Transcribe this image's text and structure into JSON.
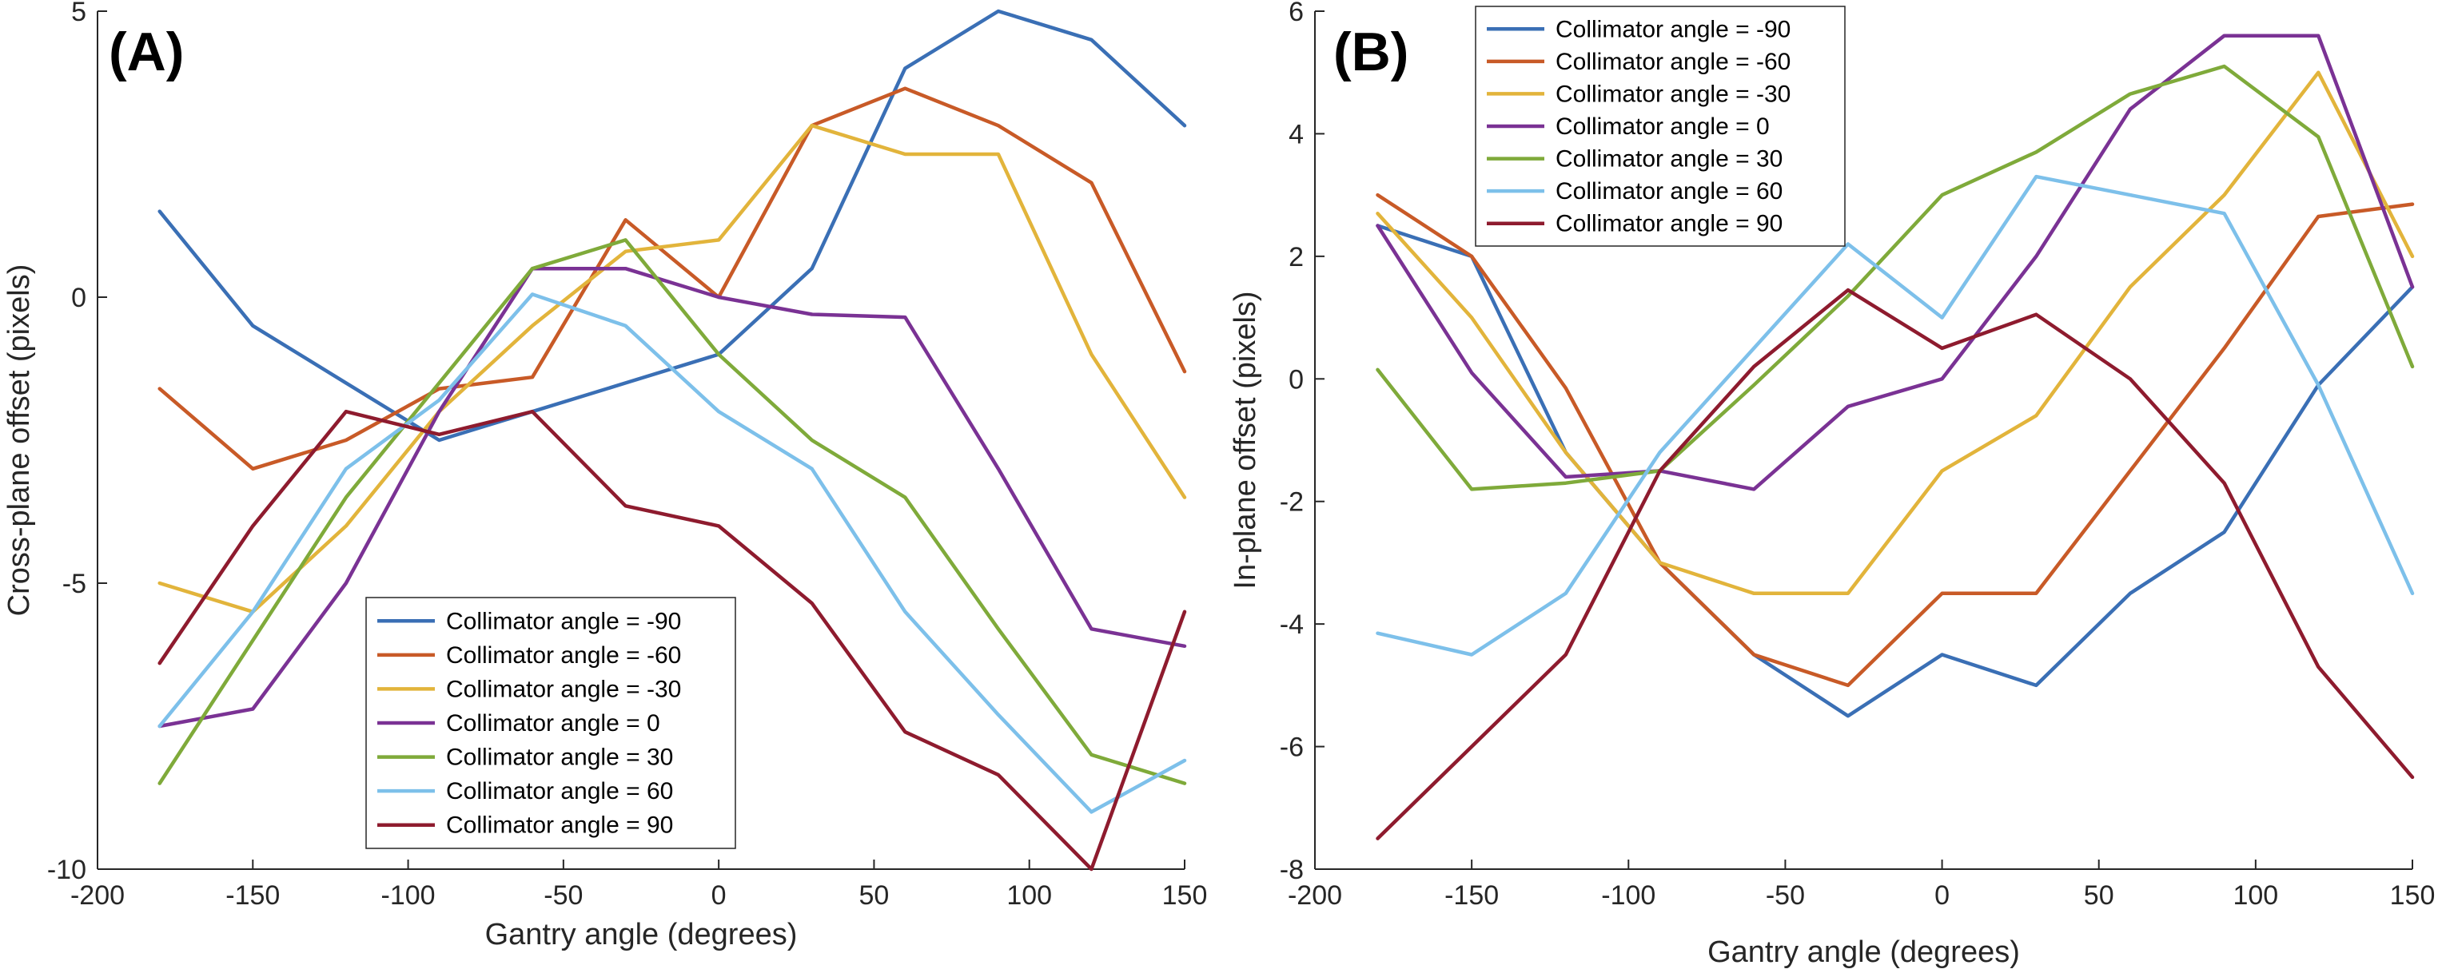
{
  "chart_data": [
    {
      "type": "line",
      "panel_label": "(A)",
      "xlabel": "Gantry angle (degrees)",
      "ylabel": "Cross-plane offset (pixels)",
      "xlim": [
        -200,
        150
      ],
      "ylim": [
        -10,
        5
      ],
      "xticks": [
        -200,
        -150,
        -100,
        -50,
        0,
        50,
        100,
        150
      ],
      "yticks": [
        -10,
        -5,
        0,
        5
      ],
      "legend_position": "bottom-center",
      "x": [
        -180,
        -150,
        -120,
        -90,
        -60,
        -30,
        0,
        30,
        60,
        90,
        120,
        150
      ],
      "series": [
        {
          "name": "Collimator angle = -90",
          "color": "#3A6FB5",
          "values": [
            1.5,
            -0.5,
            -1.5,
            -2.5,
            -2.0,
            -1.5,
            -1.0,
            0.5,
            4.0,
            5.0,
            4.5,
            3.0
          ]
        },
        {
          "name": "Collimator angle = -60",
          "color": "#C85A27",
          "values": [
            -1.6,
            -3.0,
            -2.5,
            -1.6,
            -1.4,
            1.35,
            0.0,
            3.0,
            3.65,
            3.0,
            2.0,
            -1.3
          ]
        },
        {
          "name": "Collimator angle = -30",
          "color": "#E2B43B",
          "values": [
            -5.0,
            -5.5,
            -4.0,
            -2.0,
            -0.5,
            0.8,
            1.0,
            3.0,
            2.5,
            2.5,
            -1.0,
            -3.5
          ]
        },
        {
          "name": "Collimator angle = 0",
          "color": "#7A3294",
          "values": [
            -7.5,
            -7.2,
            -5.0,
            -2.0,
            0.5,
            0.5,
            0.0,
            -0.3,
            -0.35,
            -3.0,
            -5.8,
            -6.1
          ]
        },
        {
          "name": "Collimator angle = 30",
          "color": "#7FAA3A",
          "values": [
            -8.5,
            -6.0,
            -3.5,
            -1.5,
            0.5,
            1.0,
            -1.0,
            -2.5,
            -3.5,
            -5.8,
            -8.0,
            -8.5
          ]
        },
        {
          "name": "Collimator angle = 60",
          "color": "#7DC0EA",
          "values": [
            -7.5,
            -5.5,
            -3.0,
            -1.8,
            0.05,
            -0.5,
            -2.0,
            -3.0,
            -5.5,
            -7.3,
            -9.0,
            -8.1
          ]
        },
        {
          "name": "Collimator angle = 90",
          "color": "#8E1B2E",
          "values": [
            -6.4,
            -4.0,
            -2.0,
            -2.4,
            -2.0,
            -3.65,
            -4.0,
            -5.35,
            -7.6,
            -8.35,
            -10.0,
            -5.5
          ]
        }
      ]
    },
    {
      "type": "line",
      "panel_label": "(B)",
      "xlabel": "Gantry angle (degrees)",
      "ylabel": "In-plane offset (pixels)",
      "xlim": [
        -200,
        150
      ],
      "ylim": [
        -8,
        6
      ],
      "xticks": [
        -200,
        -150,
        -100,
        -50,
        0,
        50,
        100,
        150
      ],
      "yticks": [
        -8,
        -6,
        -4,
        -2,
        0,
        2,
        4,
        6
      ],
      "legend_position": "top-left",
      "x": [
        -180,
        -150,
        -120,
        -90,
        -60,
        -30,
        0,
        30,
        60,
        90,
        120,
        150
      ],
      "series": [
        {
          "name": "Collimator angle = -90",
          "color": "#3A6FB5",
          "values": [
            2.5,
            2.0,
            -1.2,
            -3.0,
            -4.5,
            -5.5,
            -4.5,
            -5.0,
            -3.5,
            -2.5,
            -0.1,
            1.5
          ]
        },
        {
          "name": "Collimator angle = -60",
          "color": "#C85A27",
          "values": [
            3.0,
            2.0,
            -0.15,
            -3.0,
            -4.5,
            -5.0,
            -3.5,
            -3.5,
            -1.5,
            0.5,
            2.65,
            2.85
          ]
        },
        {
          "name": "Collimator angle = -30",
          "color": "#E2B43B",
          "values": [
            2.7,
            1.0,
            -1.2,
            -3.0,
            -3.5,
            -3.5,
            -1.5,
            -0.6,
            1.5,
            3.0,
            5.0,
            2.0
          ]
        },
        {
          "name": "Collimator angle = 0",
          "color": "#7A3294",
          "values": [
            2.5,
            0.1,
            -1.6,
            -1.5,
            -1.8,
            -0.45,
            0.0,
            2.0,
            4.4,
            5.6,
            5.6,
            1.5
          ]
        },
        {
          "name": "Collimator angle = 30",
          "color": "#7FAA3A",
          "values": [
            0.15,
            -1.8,
            -1.7,
            -1.5,
            -0.1,
            1.35,
            3.0,
            3.7,
            4.65,
            5.1,
            3.95,
            0.2
          ]
        },
        {
          "name": "Collimator angle = 60",
          "color": "#7DC0EA",
          "values": [
            -4.15,
            -4.5,
            -3.5,
            -1.2,
            0.5,
            2.2,
            1.0,
            3.3,
            3.0,
            2.7,
            -0.1,
            -3.5
          ]
        },
        {
          "name": "Collimator angle = 90",
          "color": "#8E1B2E",
          "values": [
            -7.5,
            -6.0,
            -4.5,
            -1.5,
            0.2,
            1.45,
            0.5,
            1.05,
            0.0,
            -1.7,
            -4.7,
            -6.5
          ]
        }
      ]
    }
  ]
}
